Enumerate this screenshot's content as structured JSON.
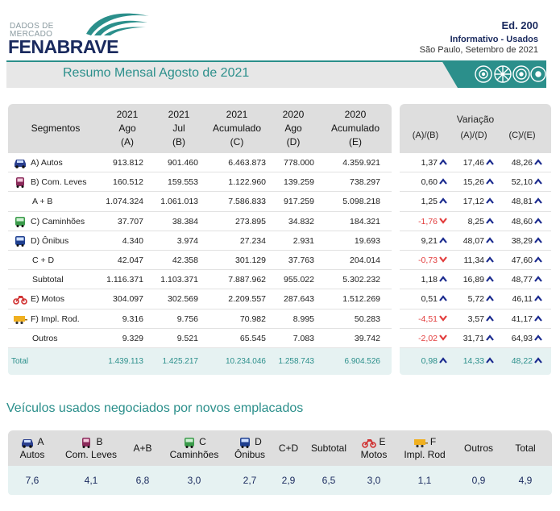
{
  "header": {
    "logo_small_line1": "DADOS DE",
    "logo_small_line2": "MERCADO",
    "logo_main": "FENABRAVE",
    "edition": "Ed. 200",
    "subtitle": "Informativo - Usados",
    "city_date": "São Paulo, Setembro de 2021",
    "banner_title": "Resumo Mensal Agosto de 2021"
  },
  "colors": {
    "teal": "#2b8f8b",
    "navy": "#1a2a5e",
    "negative": "#e23c3c",
    "arrow_up": "#1a2a8e"
  },
  "table": {
    "columns": [
      {
        "l1": "Segmentos",
        "l2": "",
        "l3": ""
      },
      {
        "l1": "2021",
        "l2": "Ago",
        "l3": "(A)"
      },
      {
        "l1": "2021",
        "l2": "Jul",
        "l3": "(B)"
      },
      {
        "l1": "2021",
        "l2": "Acumulado",
        "l3": "(C)"
      },
      {
        "l1": "2020",
        "l2": "Ago",
        "l3": "(D)"
      },
      {
        "l1": "2020",
        "l2": "Acumulado",
        "l3": "(E)"
      }
    ],
    "variation_title": "Variação",
    "variation_cols": [
      "(A)/(B)",
      "(A)/(D)",
      "(C)/(E)"
    ],
    "rows": [
      {
        "seg": "A) Autos",
        "icon": "car-icon",
        "vals": [
          "913.812",
          "901.460",
          "6.463.873",
          "778.000",
          "4.359.921"
        ],
        "var": [
          "1,37",
          "17,46",
          "48,26"
        ],
        "dir": [
          "up",
          "up",
          "up"
        ]
      },
      {
        "seg": "B) Com. Leves",
        "icon": "van-icon",
        "vals": [
          "160.512",
          "159.553",
          "1.122.960",
          "139.259",
          "738.297"
        ],
        "var": [
          "0,60",
          "15,26",
          "52,10"
        ],
        "dir": [
          "up",
          "up",
          "up"
        ]
      },
      {
        "seg": "A + B",
        "icon": "",
        "vals": [
          "1.074.324",
          "1.061.013",
          "7.586.833",
          "917.259",
          "5.098.218"
        ],
        "var": [
          "1,25",
          "17,12",
          "48,81"
        ],
        "dir": [
          "up",
          "up",
          "up"
        ]
      },
      {
        "seg": "C) Caminhões",
        "icon": "truck-icon",
        "vals": [
          "37.707",
          "38.384",
          "273.895",
          "34.832",
          "184.321"
        ],
        "var": [
          "-1,76",
          "8,25",
          "48,60"
        ],
        "dir": [
          "down",
          "up",
          "up"
        ]
      },
      {
        "seg": "D) Ônibus",
        "icon": "bus-icon",
        "vals": [
          "4.340",
          "3.974",
          "27.234",
          "2.931",
          "19.693"
        ],
        "var": [
          "9,21",
          "48,07",
          "38,29"
        ],
        "dir": [
          "up",
          "up",
          "up"
        ]
      },
      {
        "seg": "C + D",
        "icon": "",
        "vals": [
          "42.047",
          "42.358",
          "301.129",
          "37.763",
          "204.014"
        ],
        "var": [
          "-0,73",
          "11,34",
          "47,60"
        ],
        "dir": [
          "down",
          "up",
          "up"
        ]
      },
      {
        "seg": "Subtotal",
        "icon": "",
        "vals": [
          "1.116.371",
          "1.103.371",
          "7.887.962",
          "955.022",
          "5.302.232"
        ],
        "var": [
          "1,18",
          "16,89",
          "48,77"
        ],
        "dir": [
          "up",
          "up",
          "up"
        ]
      },
      {
        "seg": "E) Motos",
        "icon": "motorcycle-icon",
        "vals": [
          "304.097",
          "302.569",
          "2.209.557",
          "287.643",
          "1.512.269"
        ],
        "var": [
          "0,51",
          "5,72",
          "46,11"
        ],
        "dir": [
          "up",
          "up",
          "up"
        ]
      },
      {
        "seg": "F) Impl. Rod.",
        "icon": "trailer-icon",
        "vals": [
          "9.316",
          "9.756",
          "70.982",
          "8.995",
          "50.283"
        ],
        "var": [
          "-4,51",
          "3,57",
          "41,17"
        ],
        "dir": [
          "down",
          "up",
          "up"
        ]
      },
      {
        "seg": "Outros",
        "icon": "",
        "vals": [
          "9.329",
          "9.521",
          "65.545",
          "7.083",
          "39.742"
        ],
        "var": [
          "-2,02",
          "31,71",
          "64,93"
        ],
        "dir": [
          "down",
          "up",
          "up"
        ]
      }
    ],
    "total": {
      "seg": "Total",
      "vals": [
        "1.439.113",
        "1.425.217",
        "10.234.046",
        "1.258.743",
        "6.904.526"
      ],
      "var": [
        "0,98",
        "14,33",
        "48,22"
      ],
      "dir": [
        "up",
        "up",
        "up"
      ]
    }
  },
  "section2": {
    "title": "Veículos usados negociados por novos emplacados",
    "cols": [
      {
        "l1": "A",
        "l2": "Autos",
        "icon": "car-icon",
        "value": "7,6"
      },
      {
        "l1": "B",
        "l2": "Com. Leves",
        "icon": "van-icon",
        "value": "4,1"
      },
      {
        "l1": "A+B",
        "l2": "",
        "icon": "",
        "value": "6,8"
      },
      {
        "l1": "C",
        "l2": "Caminhões",
        "icon": "truck-icon",
        "value": "3,0"
      },
      {
        "l1": "D",
        "l2": "Ônibus",
        "icon": "bus-icon",
        "value": "2,7"
      },
      {
        "l1": "C+D",
        "l2": "",
        "icon": "",
        "value": "2,9"
      },
      {
        "l1": "Subtotal",
        "l2": "",
        "icon": "",
        "value": "6,5"
      },
      {
        "l1": "E",
        "l2": "Motos",
        "icon": "motorcycle-icon",
        "value": "3,0"
      },
      {
        "l1": "F",
        "l2": "Impl. Rod",
        "icon": "trailer-icon",
        "value": "1,1"
      },
      {
        "l1": "Outros",
        "l2": "",
        "icon": "",
        "value": "0,9"
      },
      {
        "l1": "Total",
        "l2": "",
        "icon": "",
        "value": "4,9"
      }
    ]
  }
}
